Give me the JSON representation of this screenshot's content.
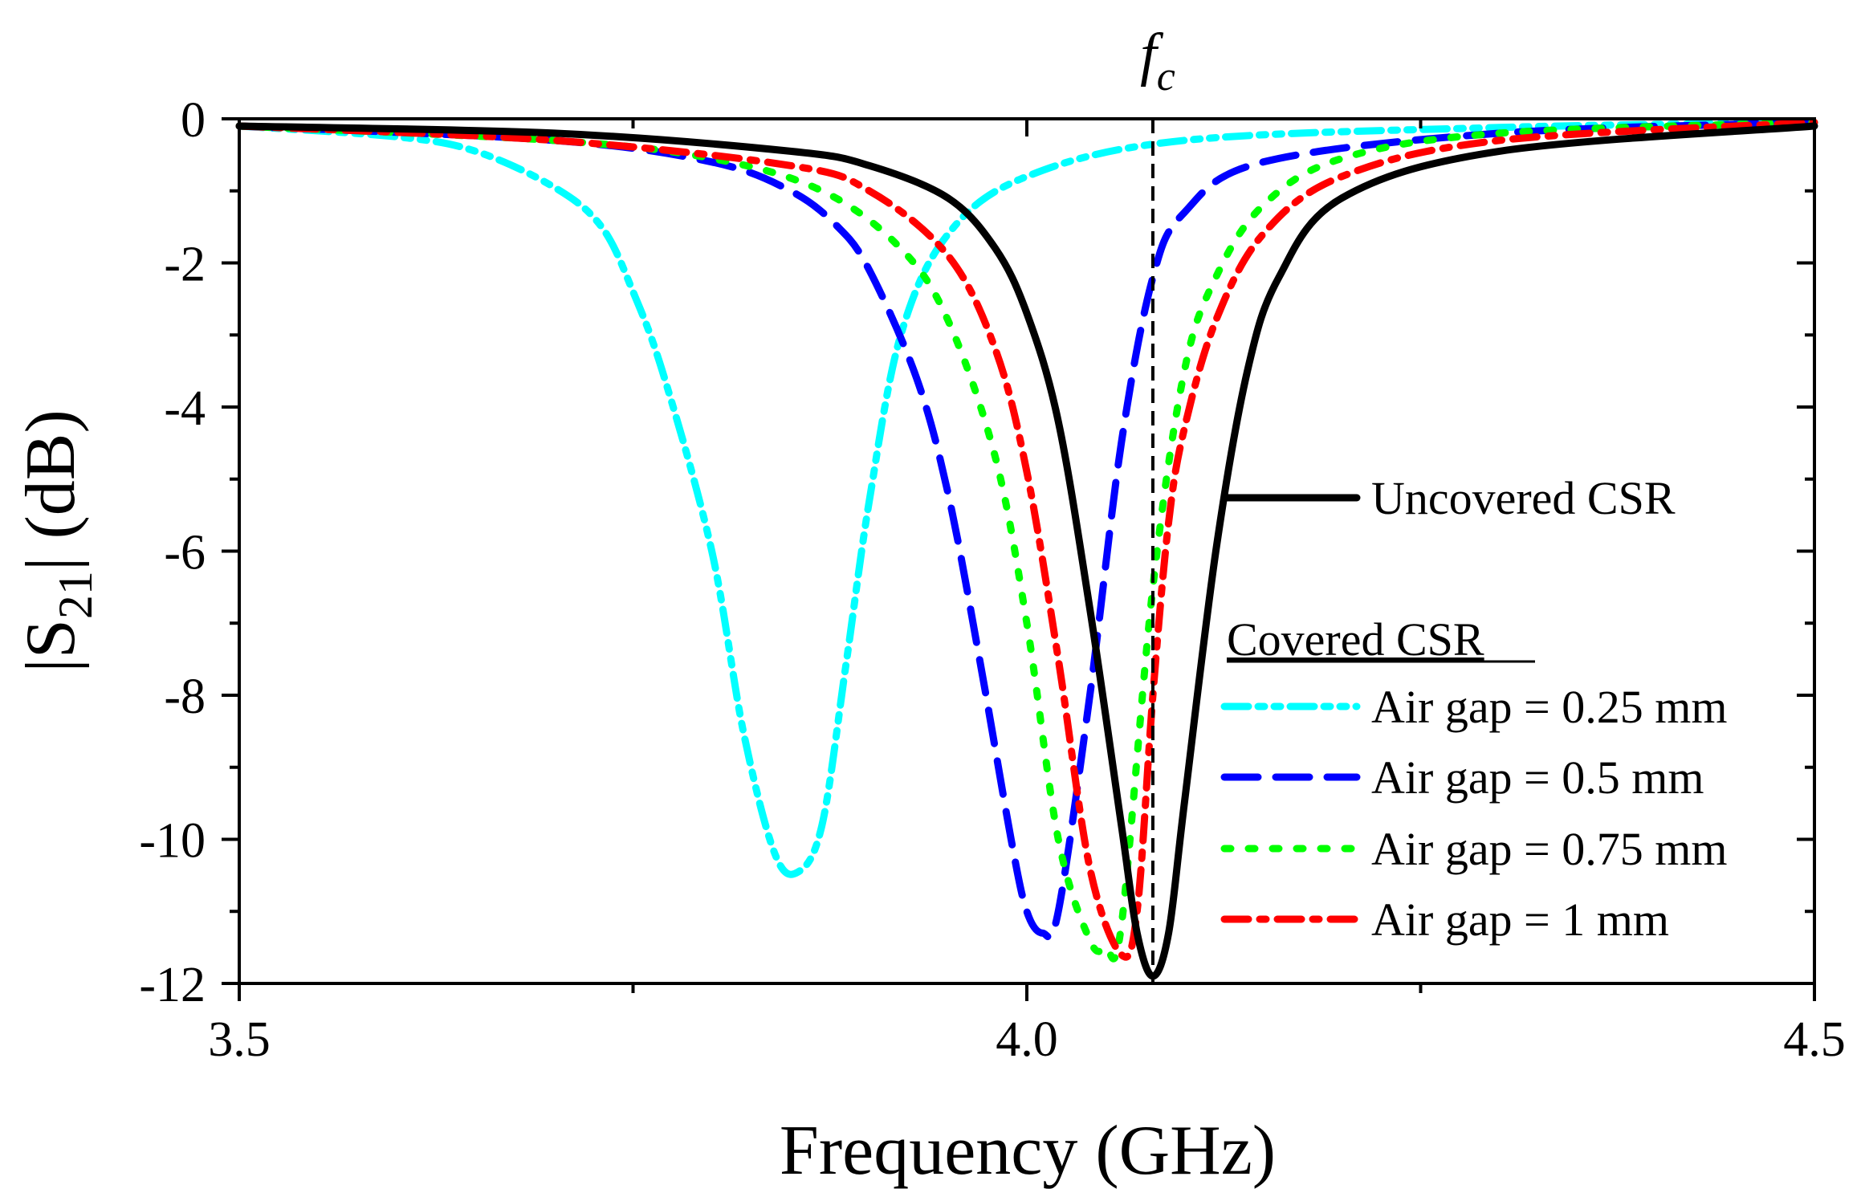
{
  "chart_data": {
    "type": "line",
    "title": "",
    "xlabel": "Frequency (GHz)",
    "ylabel": "|S21| (dB)",
    "ylabel_parts": {
      "pre": "|S",
      "sub": "21",
      "post": "| (dB)"
    },
    "xlim": [
      3.5,
      4.5
    ],
    "ylim": [
      -12,
      0
    ],
    "x_ticks": [
      3.5,
      4.0,
      4.5
    ],
    "x_tick_labels": [
      "3.5",
      "4.0",
      "4.5"
    ],
    "x_minor_ticks": [
      3.75,
      4.25
    ],
    "y_ticks": [
      0,
      -2,
      -4,
      -6,
      -8,
      -10,
      -12
    ],
    "y_tick_labels": [
      "0",
      "-2",
      "-4",
      "-6",
      "-8",
      "-10",
      "-12"
    ],
    "y_minor_ticks": [
      -1,
      -3,
      -5,
      -7,
      -9,
      -11
    ],
    "grid": false,
    "marker_line": {
      "x": 4.08,
      "label_main": "f",
      "label_sub": "c",
      "color": "#000000"
    },
    "legend": {
      "placement": "right-center",
      "group_header": "Covered CSR"
    },
    "series": [
      {
        "name": "Uncovered CSR",
        "group": "uncovered",
        "color": "#000000",
        "style": "solid",
        "x": [
          3.5,
          3.7,
          3.85,
          3.9,
          3.95,
          3.98,
          4.0,
          4.02,
          4.04,
          4.06,
          4.07,
          4.08,
          4.09,
          4.1,
          4.12,
          4.14,
          4.16,
          4.2,
          4.3,
          4.5
        ],
        "values": [
          -0.1,
          -0.2,
          -0.45,
          -0.65,
          -1.1,
          -1.8,
          -2.7,
          -4.2,
          -6.8,
          -9.8,
          -11.3,
          -11.9,
          -11.3,
          -9.5,
          -6.0,
          -3.5,
          -2.2,
          -1.1,
          -0.45,
          -0.1
        ]
      },
      {
        "name": "Air gap = 0.25 mm",
        "group": "covered",
        "color": "#00ffff",
        "style": "dash-dot-dot",
        "x": [
          3.5,
          3.6,
          3.65,
          3.7,
          3.73,
          3.75,
          3.77,
          3.8,
          3.82,
          3.84,
          3.855,
          3.87,
          3.885,
          3.9,
          3.92,
          3.95,
          4.0,
          4.1,
          4.3,
          4.5
        ],
        "values": [
          -0.1,
          -0.25,
          -0.45,
          -0.95,
          -1.5,
          -2.4,
          -3.6,
          -6.0,
          -8.5,
          -10.2,
          -10.45,
          -9.8,
          -7.6,
          -5.3,
          -3.0,
          -1.6,
          -0.8,
          -0.3,
          -0.12,
          -0.05
        ]
      },
      {
        "name": "Air gap = 0.5 mm",
        "group": "covered",
        "color": "#0000ff",
        "style": "dash",
        "x": [
          3.5,
          3.7,
          3.8,
          3.85,
          3.88,
          3.9,
          3.93,
          3.95,
          3.97,
          3.99,
          4.0,
          4.01,
          4.02,
          4.04,
          4.06,
          4.08,
          4.1,
          4.15,
          4.3,
          4.5
        ],
        "values": [
          -0.1,
          -0.3,
          -0.6,
          -1.0,
          -1.5,
          -2.1,
          -3.6,
          -5.2,
          -7.5,
          -10.0,
          -11.0,
          -11.3,
          -11.0,
          -8.0,
          -4.5,
          -2.2,
          -1.3,
          -0.6,
          -0.2,
          -0.05
        ]
      },
      {
        "name": "Air gap = 0.75 mm",
        "group": "covered",
        "color": "#00ff00",
        "style": "dot",
        "x": [
          3.5,
          3.7,
          3.8,
          3.87,
          3.92,
          3.95,
          3.98,
          4.0,
          4.02,
          4.04,
          4.05,
          4.06,
          4.08,
          4.1,
          4.12,
          4.15,
          4.2,
          4.3,
          4.5
        ],
        "values": [
          -0.1,
          -0.3,
          -0.55,
          -1.0,
          -1.8,
          -2.8,
          -4.7,
          -7.0,
          -10.0,
          -11.4,
          -11.5,
          -11.2,
          -6.5,
          -3.5,
          -2.2,
          -1.2,
          -0.55,
          -0.2,
          -0.05
        ]
      },
      {
        "name": "Air gap = 1 mm",
        "group": "covered",
        "color": "#ff0000",
        "style": "dash-dot",
        "x": [
          3.5,
          3.7,
          3.85,
          3.9,
          3.95,
          3.98,
          4.0,
          4.02,
          4.04,
          4.06,
          4.07,
          4.08,
          4.09,
          4.1,
          4.12,
          4.15,
          4.2,
          4.3,
          4.5
        ],
        "values": [
          -0.1,
          -0.3,
          -0.65,
          -1.0,
          -1.9,
          -3.2,
          -4.9,
          -7.5,
          -10.4,
          -11.6,
          -11.0,
          -8.0,
          -5.6,
          -4.3,
          -2.8,
          -1.6,
          -0.8,
          -0.3,
          -0.05
        ]
      }
    ]
  }
}
